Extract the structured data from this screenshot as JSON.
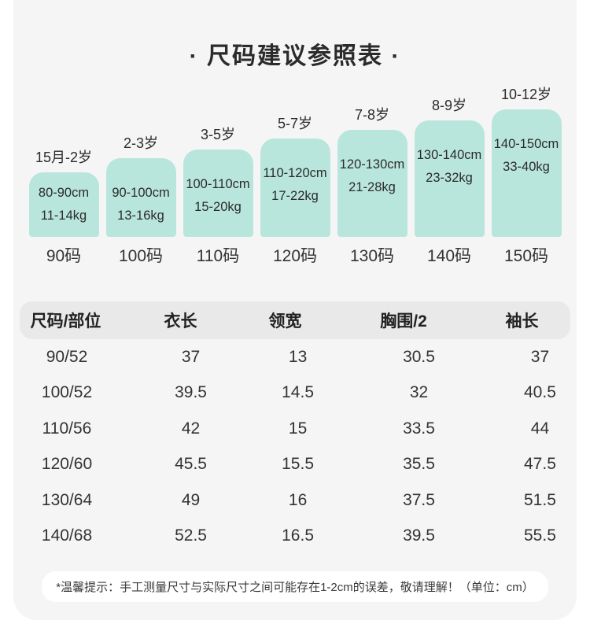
{
  "colors": {
    "bar_fill": "#b9e6dc",
    "card_bg": "#f5f5f5",
    "header_pill_bg": "#e9e9e9",
    "note_pill_bg": "#ffffff",
    "text": "#2f2f2f"
  },
  "chart_data": [
    {
      "type": "bar",
      "title": "· 尺码建议参照表 ·",
      "note": "ascending decorative bars, one per clothing size",
      "bars": [
        {
          "age": "15月-2岁",
          "height_range": "80-90cm",
          "weight_range": "11-14kg",
          "size": "90码"
        },
        {
          "age": "2-3岁",
          "height_range": "90-100cm",
          "weight_range": "13-16kg",
          "size": "100码"
        },
        {
          "age": "3-5岁",
          "height_range": "100-110cm",
          "weight_range": "15-20kg",
          "size": "110码"
        },
        {
          "age": "5-7岁",
          "height_range": "110-120cm",
          "weight_range": "17-22kg",
          "size": "120码"
        },
        {
          "age": "7-8岁",
          "height_range": "120-130cm",
          "weight_range": "21-28kg",
          "size": "130码"
        },
        {
          "age": "8-9岁",
          "height_range": "130-140cm",
          "weight_range": "23-32kg",
          "size": "140码"
        },
        {
          "age": "10-12岁",
          "height_range": "140-150cm",
          "weight_range": "33-40kg",
          "size": "150码"
        }
      ]
    },
    {
      "type": "table",
      "headers": [
        "尺码/部位",
        "衣长",
        "领宽",
        "胸围/2",
        "袖长"
      ],
      "rows": [
        [
          "90/52",
          "37",
          "13",
          "30.5",
          "37"
        ],
        [
          "100/52",
          "39.5",
          "14.5",
          "32",
          "40.5"
        ],
        [
          "110/56",
          "42",
          "15",
          "33.5",
          "44"
        ],
        [
          "120/60",
          "45.5",
          "15.5",
          "35.5",
          "47.5"
        ],
        [
          "130/64",
          "49",
          "16",
          "37.5",
          "51.5"
        ],
        [
          "140/68",
          "52.5",
          "16.5",
          "39.5",
          "55.5"
        ]
      ]
    }
  ],
  "footer_note": "*温馨提示：手工测量尺寸与实际尺寸之间可能存在1-2cm的误差，敬请理解！（单位：cm）"
}
